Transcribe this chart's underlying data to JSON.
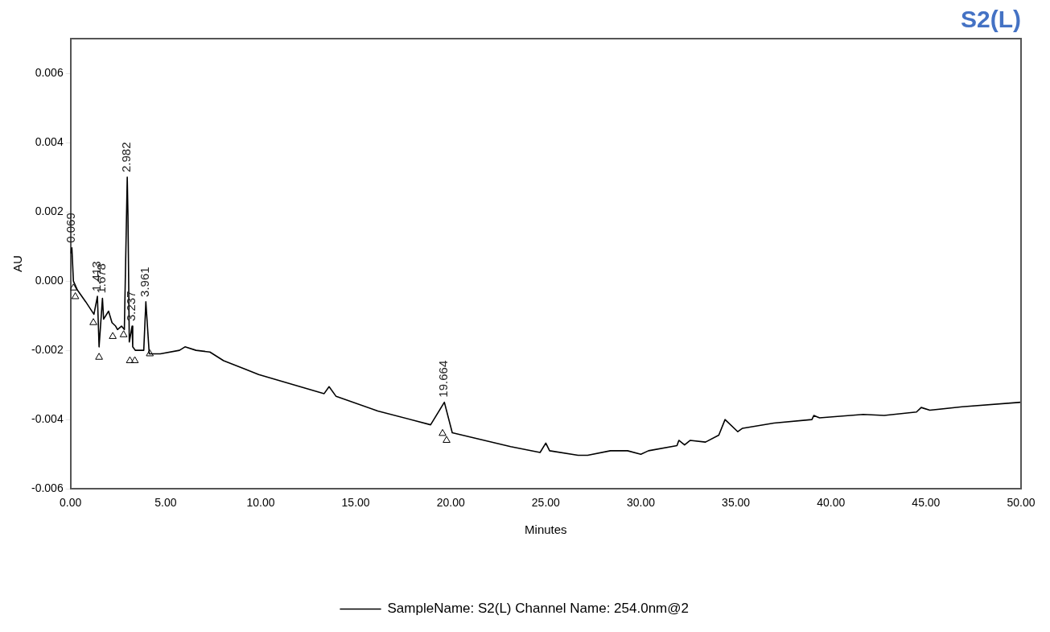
{
  "chart_data": {
    "type": "line",
    "title": "S2(L)",
    "xlabel": "Minutes",
    "ylabel": "AU",
    "xlim": [
      0,
      50
    ],
    "ylim": [
      -0.006,
      0.007
    ],
    "xticks": [
      {
        "value": 0,
        "label": "0.00"
      },
      {
        "value": 5,
        "label": "5.00"
      },
      {
        "value": 10,
        "label": "10.00"
      },
      {
        "value": 15,
        "label": "15.00"
      },
      {
        "value": 20,
        "label": "20.00"
      },
      {
        "value": 25,
        "label": "25.00"
      },
      {
        "value": 30,
        "label": "30.00"
      },
      {
        "value": 35,
        "label": "35.00"
      },
      {
        "value": 40,
        "label": "40.00"
      },
      {
        "value": 45,
        "label": "45.00"
      },
      {
        "value": 50,
        "label": "50.00"
      }
    ],
    "yticks": [
      {
        "value": -0.006,
        "label": "-0.006"
      },
      {
        "value": -0.004,
        "label": "-0.004"
      },
      {
        "value": -0.002,
        "label": "-0.002"
      },
      {
        "value": 0,
        "label": "0.000"
      },
      {
        "value": 0.002,
        "label": "0.002"
      },
      {
        "value": 0.004,
        "label": "0.004"
      },
      {
        "value": 0.006,
        "label": "0.006"
      }
    ],
    "grid": false,
    "legend": "bottom",
    "marker": "none",
    "line_style": "solid",
    "series": [
      {
        "name": "SampleName: S2(L) Channel Name: 254.0nm@2",
        "color": "#000000",
        "type": "line",
        "x": [
          0,
          0.069,
          0.15,
          0.36,
          0.8,
          1.23,
          1.413,
          1.5,
          1.678,
          1.74,
          2.0,
          2.18,
          2.37,
          2.47,
          2.68,
          2.83,
          2.982,
          3.02,
          3.09,
          3.237,
          3.27,
          3.41,
          3.85,
          3.961,
          4.14,
          4.72,
          5.73,
          6.02,
          6.6,
          7.33,
          8.05,
          9.13,
          9.9,
          13.34,
          13.6,
          13.97,
          16.16,
          18.94,
          19.664,
          20.08,
          23.15,
          24.7,
          25.0,
          25.2,
          26.7,
          27.2,
          28.4,
          29.3,
          30.0,
          30.4,
          31.9,
          32.0,
          32.3,
          32.6,
          33.4,
          34.1,
          34.43,
          35.1,
          35.35,
          37.0,
          39.0,
          39.1,
          39.4,
          41.7,
          42.8,
          44.5,
          44.75,
          45.2,
          46.9,
          50
        ],
        "values": [
          0.0008,
          0.00096,
          0,
          -0.00026,
          -0.0006,
          -0.00096,
          -0.00044,
          -0.0019,
          -0.0005,
          -0.0011,
          -0.00087,
          -0.0012,
          -0.0013,
          -0.0014,
          -0.0013,
          -0.0014,
          0.003,
          0.0019,
          -0.00176,
          -0.0013,
          -0.0019,
          -0.002,
          -0.002,
          -0.0006,
          -0.0021,
          -0.0021,
          -0.002,
          -0.0019,
          -0.002,
          -0.00205,
          -0.0023,
          -0.00253,
          -0.0027,
          -0.00325,
          -0.00305,
          -0.00333,
          -0.00375,
          -0.00415,
          -0.0035,
          -0.00438,
          -0.00478,
          -0.00495,
          -0.00468,
          -0.0049,
          -0.00503,
          -0.00503,
          -0.0049,
          -0.0049,
          -0.005,
          -0.0049,
          -0.00475,
          -0.0046,
          -0.00473,
          -0.0046,
          -0.00465,
          -0.00445,
          -0.004,
          -0.00435,
          -0.00425,
          -0.0041,
          -0.004,
          -0.00388,
          -0.00395,
          -0.00385,
          -0.00388,
          -0.00378,
          -0.00365,
          -0.00373,
          -0.00363,
          -0.0035
        ]
      },
      {
        "color": "#000000",
        "type": "scatter",
        "marker": "triangle",
        "x": [
          0.15,
          0.25,
          1.2,
          1.5,
          2.22,
          2.79,
          3.12,
          3.38,
          4.17,
          19.57,
          19.78
        ],
        "values": [
          -0.0002,
          -0.00045,
          -0.0012,
          -0.0022,
          -0.0016,
          -0.00155,
          -0.0023,
          -0.0023,
          -0.0021,
          -0.0044,
          -0.0046
        ]
      }
    ],
    "annotations": [
      {
        "text": "0.069",
        "x": 0.069,
        "y": 0.00096
      },
      {
        "text": "1.413",
        "x": 1.413,
        "y": -0.00044
      },
      {
        "text": "1.678",
        "x": 1.678,
        "y": -0.0005
      },
      {
        "text": "2.982",
        "x": 2.982,
        "y": 0.003
      },
      {
        "text": "3.237",
        "x": 3.237,
        "y": -0.0013
      },
      {
        "text": "3.961",
        "x": 3.961,
        "y": -0.0006
      },
      {
        "text": "19.664",
        "x": 19.664,
        "y": -0.0035
      }
    ]
  }
}
